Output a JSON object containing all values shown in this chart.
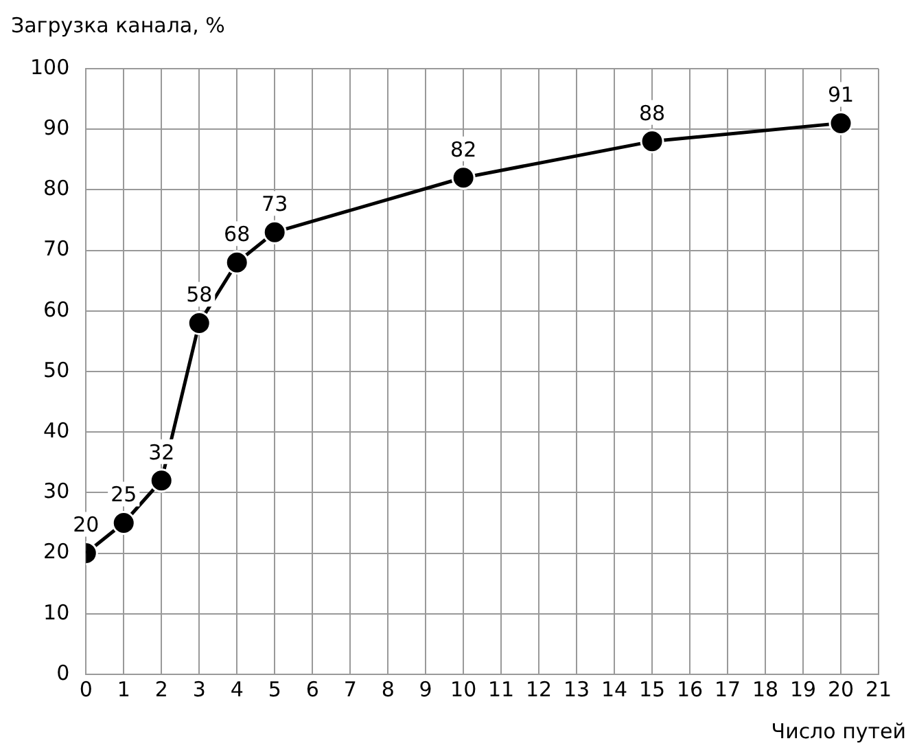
{
  "chart_data": {
    "type": "line",
    "xlabel": "Число путей",
    "ylabel": "Загрузка канала, %",
    "x": [
      0,
      1,
      2,
      3,
      4,
      5,
      10,
      15,
      20
    ],
    "series": [
      {
        "color": "#000000",
        "values": [
          20,
          25,
          32,
          58,
          68,
          73,
          82,
          88,
          91
        ]
      }
    ],
    "xlim": [
      0,
      21
    ],
    "xticks": [
      0,
      1,
      2,
      3,
      4,
      5,
      6,
      7,
      8,
      9,
      10,
      11,
      12,
      13,
      14,
      15,
      16,
      17,
      18,
      19,
      20,
      21
    ],
    "ylim": [
      0,
      100
    ],
    "yticks": [
      0,
      10,
      20,
      30,
      40,
      50,
      60,
      70,
      80,
      90,
      100
    ],
    "grid": true,
    "marker": "circle",
    "line_style": "solid",
    "data_labels": true
  }
}
